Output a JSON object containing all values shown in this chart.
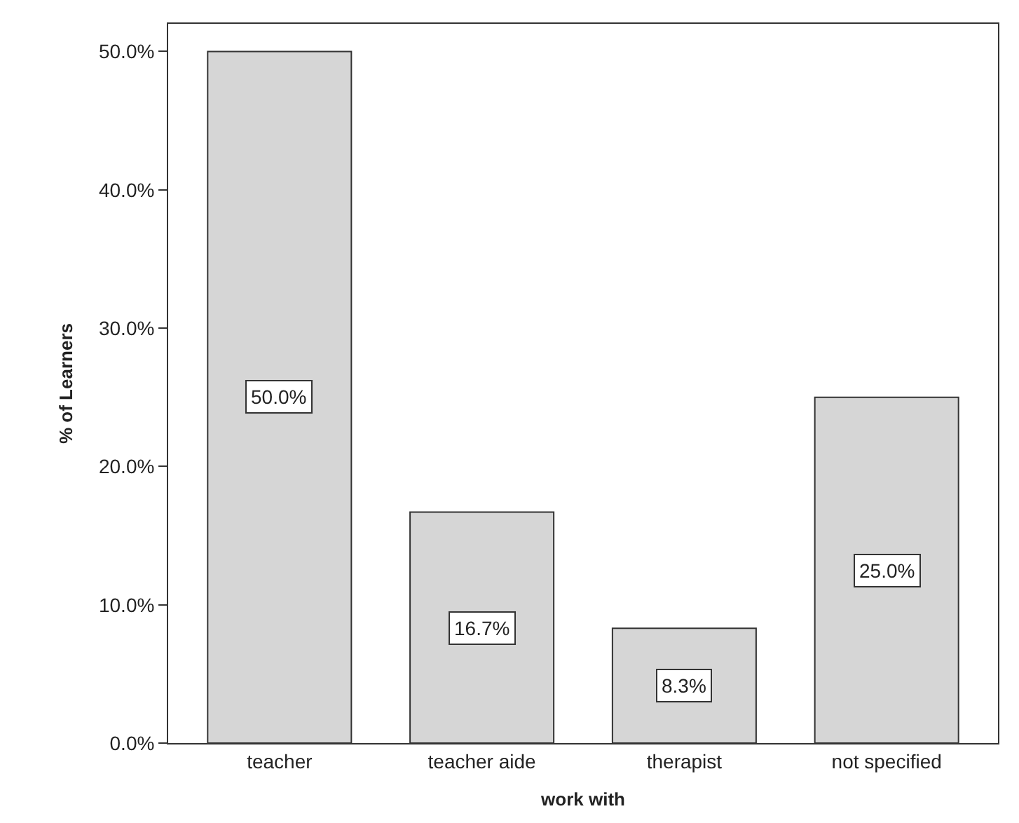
{
  "chart_data": {
    "type": "bar",
    "xlabel": "work with",
    "ylabel": "% of Learners",
    "categories": [
      "teacher",
      "teacher aide",
      "therapist",
      "not specified"
    ],
    "values": [
      50.0,
      16.7,
      8.3,
      25.0
    ],
    "value_labels": [
      "50.0%",
      "16.7%",
      "8.3%",
      "25.0%"
    ],
    "color": "#d6d6d6",
    "ylim": [
      0,
      52
    ],
    "yticks": [
      {
        "value": 0,
        "label": "0.0%"
      },
      {
        "value": 10,
        "label": "10.0%"
      },
      {
        "value": 20,
        "label": "20.0%"
      },
      {
        "value": 30,
        "label": "30.0%"
      },
      {
        "value": 40,
        "label": "40.0%"
      },
      {
        "value": 50,
        "label": "50.0%"
      }
    ],
    "legend": false
  }
}
